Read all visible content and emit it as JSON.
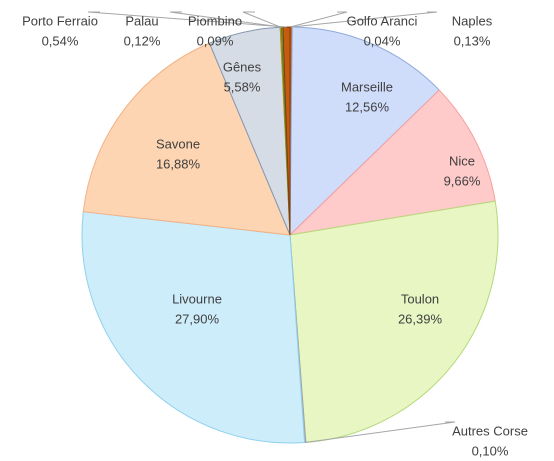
{
  "chart_data": {
    "type": "pie",
    "categories": [
      "Golfo Aranci",
      "Naples",
      "Marseille",
      "Nice",
      "Toulon",
      "Autres Corse",
      "Livourne",
      "Savone",
      "Gênes",
      "Piombino",
      "Palau",
      "Porto Ferraio"
    ],
    "values": [
      0.04,
      0.13,
      12.56,
      9.66,
      26.39,
      0.1,
      27.9,
      16.88,
      5.58,
      0.09,
      0.12,
      0.54
    ],
    "value_labels": [
      "0,04%",
      "0,13%",
      "12,56%",
      "9,66%",
      "26,39%",
      "0,10%",
      "27,90%",
      "16,88%",
      "5,58%",
      "0,09%",
      "0,12%",
      "0,54%"
    ],
    "colors": [
      "#7f7f7f",
      "#c55a11",
      "#cfdcfa",
      "#ffcaca",
      "#e8f6c4",
      "#a5a5a5",
      "#cdedfb",
      "#fdd5b2",
      "#d6dce5",
      "#ffc000",
      "#70ad47",
      "#c55a11"
    ],
    "edge_colors": [
      "#7f7f7f",
      "#c55a11",
      "#8eaadb",
      "#f4a0a0",
      "#b5d97a",
      "#a5a5a5",
      "#8fd0ee",
      "#f4b183",
      "#8497b0",
      "#bf9000",
      "#548235",
      "#843c0c"
    ]
  }
}
